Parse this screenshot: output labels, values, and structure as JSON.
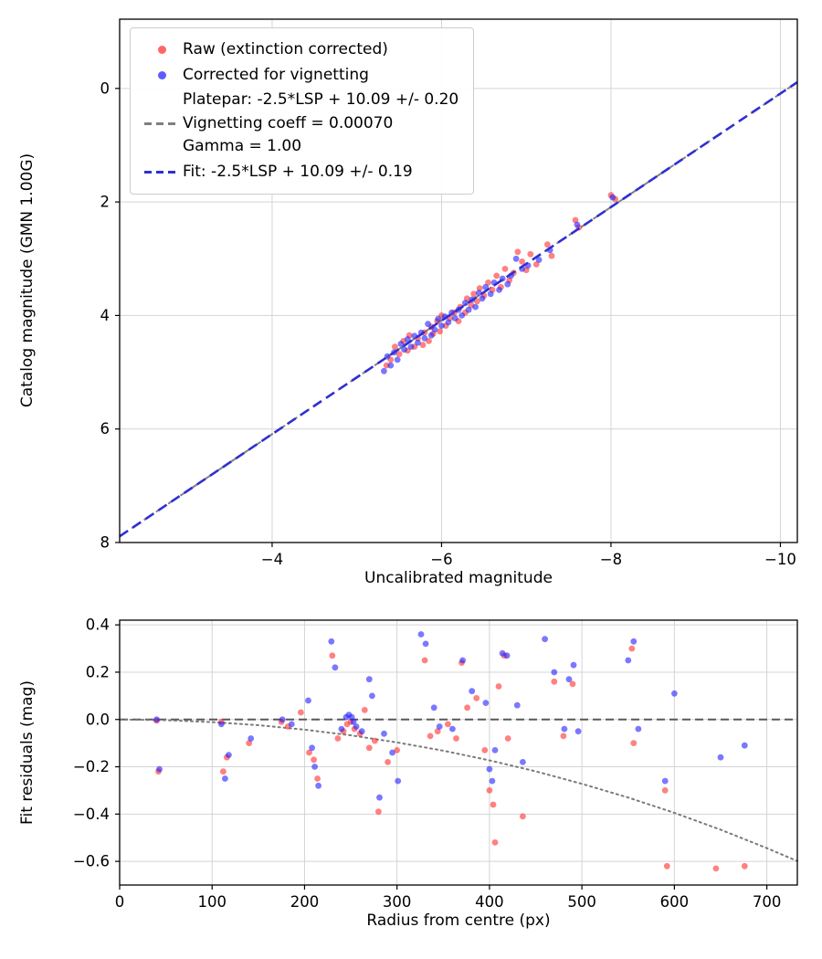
{
  "figure": {
    "background": "#ffffff",
    "legend": {
      "raw_label": "Raw (extinction corrected)",
      "vignetting_label": "Corrected for vignetting",
      "platepar_line1": "Platepar: -2.5*LSP + 10.09 +/- 0.20",
      "platepar_line2": "Vignetting coeff = 0.00070",
      "platepar_line3": "Gamma = 1.00",
      "fit_label": "Fit: -2.5*LSP + 10.09 +/- 0.19"
    },
    "colors": {
      "raw": "#ff2d2d",
      "vignetting": "#1f1fff",
      "fit_line": "#2f2fd3",
      "platepar_line": "#7f7f7f",
      "vignetting_curve": "#7a7a7a",
      "zero_line": "#595959",
      "grid": "#d4d4d4"
    }
  },
  "chart_data": [
    {
      "type": "scatter",
      "title": "",
      "xlabel": "Uncalibrated magnitude",
      "ylabel": "Catalog magnitude (GMN 1.00G)",
      "xlim": [
        -10.2,
        -2.2
      ],
      "ylim": [
        -1.22,
        8.0
      ],
      "x_inverted": true,
      "y_inverted": true,
      "grid": true,
      "legend_position": "upper left",
      "x_ticks": [
        -4,
        -6,
        -8,
        -10
      ],
      "x_tick_labels": [
        "−4",
        "−6",
        "−8",
        "−10"
      ],
      "y_ticks": [
        0,
        2,
        4,
        6,
        8
      ],
      "y_tick_labels": [
        "0",
        "2",
        "4",
        "6",
        "8"
      ],
      "lines": [
        {
          "name": "Platepar: -2.5*LSP + 10.09 +/- 0.20 | Vignetting coeff = 0.00070 | Gamma = 1.00",
          "color": "#7f7f7f",
          "width": 2,
          "dash": "10,6",
          "z": "back",
          "points": [
            [
              -2.2,
              7.89
            ],
            [
              -10.2,
              -0.11
            ]
          ]
        },
        {
          "name": "Fit: -2.5*LSP + 10.09 +/- 0.19",
          "color": "#2f2fd3",
          "width": 2.6,
          "dash": "11,6",
          "z": "front",
          "points": [
            [
              -2.2,
              7.89
            ],
            [
              -10.2,
              -0.11
            ]
          ]
        }
      ],
      "series": [
        {
          "name": "Raw (extinction corrected)",
          "color": "#ff2d2d",
          "alpha": 0.6,
          "points": [
            [
              -8.05,
              1.95
            ],
            [
              -8.0,
              1.88
            ],
            [
              -7.62,
              2.45
            ],
            [
              -7.58,
              2.32
            ],
            [
              -7.3,
              2.95
            ],
            [
              -7.25,
              2.75
            ],
            [
              -7.12,
              3.1
            ],
            [
              -7.05,
              2.92
            ],
            [
              -7.0,
              3.2
            ],
            [
              -6.95,
              3.05
            ],
            [
              -6.9,
              2.88
            ],
            [
              -6.85,
              3.25
            ],
            [
              -6.8,
              3.38
            ],
            [
              -6.75,
              3.18
            ],
            [
              -6.7,
              3.5
            ],
            [
              -6.65,
              3.3
            ],
            [
              -6.6,
              3.55
            ],
            [
              -6.55,
              3.42
            ],
            [
              -6.5,
              3.65
            ],
            [
              -6.45,
              3.52
            ],
            [
              -6.42,
              3.75
            ],
            [
              -6.38,
              3.62
            ],
            [
              -6.35,
              3.82
            ],
            [
              -6.3,
              3.7
            ],
            [
              -6.28,
              3.95
            ],
            [
              -6.22,
              3.85
            ],
            [
              -6.2,
              4.1
            ],
            [
              -6.15,
              3.95
            ],
            [
              -6.1,
              4.05
            ],
            [
              -6.05,
              4.18
            ],
            [
              -6.0,
              4.0
            ],
            [
              -5.98,
              4.28
            ],
            [
              -5.95,
              4.1
            ],
            [
              -5.9,
              4.32
            ],
            [
              -5.88,
              4.2
            ],
            [
              -5.85,
              4.45
            ],
            [
              -5.8,
              4.3
            ],
            [
              -5.78,
              4.52
            ],
            [
              -5.72,
              4.4
            ],
            [
              -5.68,
              4.55
            ],
            [
              -5.62,
              4.35
            ],
            [
              -5.6,
              4.62
            ],
            [
              -5.55,
              4.45
            ],
            [
              -5.5,
              4.68
            ],
            [
              -5.45,
              4.55
            ],
            [
              -5.4,
              4.78
            ],
            [
              -5.35,
              4.88
            ]
          ]
        },
        {
          "name": "Corrected for vignetting",
          "color": "#1f1fff",
          "alpha": 0.6,
          "points": [
            [
              -8.02,
              1.92
            ],
            [
              -7.6,
              2.4
            ],
            [
              -7.28,
              2.85
            ],
            [
              -7.15,
              3.02
            ],
            [
              -7.02,
              3.12
            ],
            [
              -6.95,
              3.18
            ],
            [
              -6.88,
              3.0
            ],
            [
              -6.82,
              3.3
            ],
            [
              -6.78,
              3.45
            ],
            [
              -6.72,
              3.35
            ],
            [
              -6.68,
              3.55
            ],
            [
              -6.62,
              3.42
            ],
            [
              -6.58,
              3.62
            ],
            [
              -6.52,
              3.5
            ],
            [
              -6.48,
              3.7
            ],
            [
              -6.44,
              3.6
            ],
            [
              -6.4,
              3.85
            ],
            [
              -6.36,
              3.72
            ],
            [
              -6.32,
              3.9
            ],
            [
              -6.28,
              3.78
            ],
            [
              -6.24,
              4.0
            ],
            [
              -6.2,
              3.9
            ],
            [
              -6.16,
              4.05
            ],
            [
              -6.12,
              3.95
            ],
            [
              -6.08,
              4.12
            ],
            [
              -6.04,
              4.02
            ],
            [
              -6.0,
              4.18
            ],
            [
              -5.96,
              4.06
            ],
            [
              -5.92,
              4.25
            ],
            [
              -5.88,
              4.35
            ],
            [
              -5.84,
              4.15
            ],
            [
              -5.8,
              4.4
            ],
            [
              -5.76,
              4.3
            ],
            [
              -5.72,
              4.48
            ],
            [
              -5.68,
              4.36
            ],
            [
              -5.64,
              4.55
            ],
            [
              -5.6,
              4.42
            ],
            [
              -5.56,
              4.6
            ],
            [
              -5.52,
              4.5
            ],
            [
              -5.48,
              4.78
            ],
            [
              -5.44,
              4.65
            ],
            [
              -5.4,
              4.88
            ],
            [
              -5.36,
              4.72
            ],
            [
              -5.32,
              4.98
            ]
          ]
        }
      ]
    },
    {
      "type": "scatter",
      "title": "",
      "xlabel": "Radius from centre (px)",
      "ylabel": "Fit residuals (mag)",
      "xlim": [
        0,
        733
      ],
      "ylim": [
        -0.7,
        0.42
      ],
      "x_inverted": false,
      "y_inverted": false,
      "grid": true,
      "x_ticks": [
        0,
        100,
        200,
        300,
        400,
        500,
        600,
        700
      ],
      "x_tick_labels": [
        "0",
        "100",
        "200",
        "300",
        "400",
        "500",
        "600",
        "700"
      ],
      "y_ticks": [
        0.4,
        0.2,
        0.0,
        -0.2,
        -0.4,
        -0.6
      ],
      "y_tick_labels": [
        "0.4",
        "0.2",
        "0.0",
        "−0.2",
        "−0.4",
        "−0.6"
      ],
      "lines": [
        {
          "name": "zero-residual-line",
          "color": "#595959",
          "width": 2,
          "dash": "9,5",
          "z": "back",
          "points": [
            [
              0,
              0
            ],
            [
              733,
              0
            ]
          ]
        },
        {
          "name": "vignetting-model-curve",
          "color": "#7a7a7a",
          "width": 2,
          "dash": "2,4",
          "z": "back",
          "linecap": "round",
          "points": [
            [
              0,
              0
            ],
            [
              50,
              -0.003
            ],
            [
              100,
              -0.011
            ],
            [
              150,
              -0.024
            ],
            [
              200,
              -0.043
            ],
            [
              250,
              -0.067
            ],
            [
              300,
              -0.097
            ],
            [
              350,
              -0.132
            ],
            [
              400,
              -0.173
            ],
            [
              450,
              -0.219
            ],
            [
              500,
              -0.272
            ],
            [
              550,
              -0.33
            ],
            [
              600,
              -0.395
            ],
            [
              650,
              -0.466
            ],
            [
              700,
              -0.544
            ],
            [
              733,
              -0.599
            ]
          ]
        }
      ],
      "series": [
        {
          "name": "Raw (extinction corrected)",
          "color": "#ff2d2d",
          "alpha": 0.6,
          "points": [
            [
              40,
              -0.005
            ],
            [
              42,
              -0.22
            ],
            [
              110,
              -0.01
            ],
            [
              112,
              -0.22
            ],
            [
              116,
              -0.16
            ],
            [
              140,
              -0.1
            ],
            [
              175,
              -0.01
            ],
            [
              182,
              -0.03
            ],
            [
              196,
              0.03
            ],
            [
              205,
              -0.14
            ],
            [
              210,
              -0.17
            ],
            [
              214,
              -0.25
            ],
            [
              230,
              0.27
            ],
            [
              236,
              -0.08
            ],
            [
              242,
              -0.05
            ],
            [
              246,
              -0.02
            ],
            [
              250,
              -0.01
            ],
            [
              254,
              -0.04
            ],
            [
              260,
              -0.06
            ],
            [
              265,
              0.04
            ],
            [
              270,
              -0.12
            ],
            [
              276,
              -0.09
            ],
            [
              280,
              -0.39
            ],
            [
              290,
              -0.18
            ],
            [
              300,
              -0.13
            ],
            [
              330,
              0.25
            ],
            [
              336,
              -0.07
            ],
            [
              344,
              -0.05
            ],
            [
              355,
              -0.02
            ],
            [
              364,
              -0.08
            ],
            [
              370,
              0.24
            ],
            [
              376,
              0.05
            ],
            [
              386,
              0.09
            ],
            [
              395,
              -0.13
            ],
            [
              400,
              -0.3
            ],
            [
              404,
              -0.36
            ],
            [
              406,
              -0.52
            ],
            [
              410,
              0.14
            ],
            [
              416,
              0.27
            ],
            [
              420,
              -0.08
            ],
            [
              436,
              -0.41
            ],
            [
              470,
              0.16
            ],
            [
              480,
              -0.07
            ],
            [
              490,
              0.15
            ],
            [
              554,
              0.3
            ],
            [
              556,
              -0.1
            ],
            [
              590,
              -0.3
            ],
            [
              592,
              -0.62
            ],
            [
              645,
              -0.63
            ],
            [
              676,
              -0.62
            ]
          ]
        },
        {
          "name": "Corrected for vignetting",
          "color": "#1f1fff",
          "alpha": 0.6,
          "points": [
            [
              40,
              0.0
            ],
            [
              43,
              -0.21
            ],
            [
              110,
              -0.02
            ],
            [
              114,
              -0.25
            ],
            [
              118,
              -0.15
            ],
            [
              142,
              -0.08
            ],
            [
              176,
              0.0
            ],
            [
              186,
              -0.02
            ],
            [
              204,
              0.08
            ],
            [
              208,
              -0.12
            ],
            [
              211,
              -0.2
            ],
            [
              215,
              -0.28
            ],
            [
              229,
              0.33
            ],
            [
              233,
              0.22
            ],
            [
              240,
              -0.04
            ],
            [
              245,
              0.01
            ],
            [
              248,
              0.02
            ],
            [
              251,
              0.01
            ],
            [
              253,
              -0.01
            ],
            [
              256,
              -0.03
            ],
            [
              262,
              -0.05
            ],
            [
              270,
              0.17
            ],
            [
              273,
              0.1
            ],
            [
              281,
              -0.33
            ],
            [
              286,
              -0.06
            ],
            [
              295,
              -0.14
            ],
            [
              301,
              -0.26
            ],
            [
              326,
              0.36
            ],
            [
              331,
              0.32
            ],
            [
              340,
              0.05
            ],
            [
              346,
              -0.03
            ],
            [
              360,
              -0.04
            ],
            [
              371,
              0.25
            ],
            [
              381,
              0.12
            ],
            [
              396,
              0.07
            ],
            [
              400,
              -0.21
            ],
            [
              403,
              -0.26
            ],
            [
              406,
              -0.13
            ],
            [
              414,
              0.28
            ],
            [
              419,
              0.27
            ],
            [
              430,
              0.06
            ],
            [
              436,
              -0.18
            ],
            [
              460,
              0.34
            ],
            [
              470,
              0.2
            ],
            [
              481,
              -0.04
            ],
            [
              486,
              0.17
            ],
            [
              491,
              0.23
            ],
            [
              496,
              -0.05
            ],
            [
              550,
              0.25
            ],
            [
              556,
              0.33
            ],
            [
              561,
              -0.04
            ],
            [
              590,
              -0.26
            ],
            [
              600,
              0.11
            ],
            [
              650,
              -0.16
            ],
            [
              676,
              -0.11
            ]
          ]
        }
      ]
    }
  ]
}
